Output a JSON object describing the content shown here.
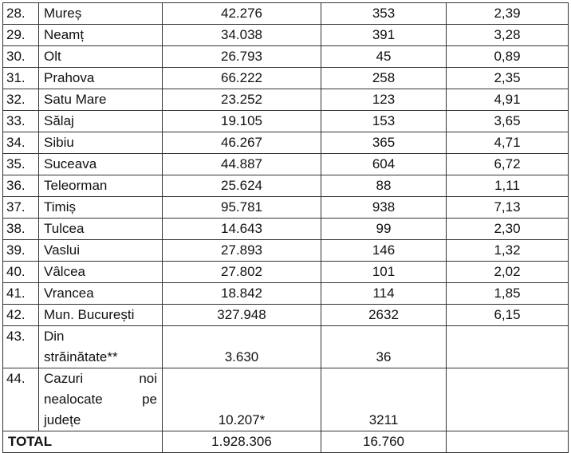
{
  "rows": [
    {
      "nr": "28.",
      "name": "Mureș",
      "cases": "42.276",
      "new": "353",
      "rate": "2,39"
    },
    {
      "nr": "29.",
      "name": "Neamț",
      "cases": "34.038",
      "new": "391",
      "rate": "3,28"
    },
    {
      "nr": "30.",
      "name": "Olt",
      "cases": "26.793",
      "new": "45",
      "rate": "0,89"
    },
    {
      "nr": "31.",
      "name": "Prahova",
      "cases": "66.222",
      "new": "258",
      "rate": "2,35"
    },
    {
      "nr": "32.",
      "name": "Satu Mare",
      "cases": "23.252",
      "new": "123",
      "rate": "4,91"
    },
    {
      "nr": "33.",
      "name": "Sălaj",
      "cases": "19.105",
      "new": "153",
      "rate": "3,65"
    },
    {
      "nr": "34.",
      "name": "Sibiu",
      "cases": "46.267",
      "new": "365",
      "rate": "4,71"
    },
    {
      "nr": "35.",
      "name": "Suceava",
      "cases": "44.887",
      "new": "604",
      "rate": "6,72"
    },
    {
      "nr": "36.",
      "name": "Teleorman",
      "cases": "25.624",
      "new": "88",
      "rate": "1,11"
    },
    {
      "nr": "37.",
      "name": "Timiș",
      "cases": "95.781",
      "new": "938",
      "rate": "7,13"
    },
    {
      "nr": "38.",
      "name": "Tulcea",
      "cases": "14.643",
      "new": "99",
      "rate": "2,30"
    },
    {
      "nr": "39.",
      "name": "Vaslui",
      "cases": "27.893",
      "new": "146",
      "rate": "1,32"
    },
    {
      "nr": "40.",
      "name": "Vâlcea",
      "cases": "27.802",
      "new": "101",
      "rate": "2,02"
    },
    {
      "nr": "41.",
      "name": "Vrancea",
      "cases": "18.842",
      "new": "114",
      "rate": "1,85"
    },
    {
      "nr": "42.",
      "name": "Mun. București",
      "cases": "327.948",
      "new": "2632",
      "rate": "6,15"
    }
  ],
  "abroad": {
    "nr": "43.",
    "name_line1": "Din",
    "name_line2": "străinătate**",
    "cases": "3.630",
    "new": "36",
    "rate": ""
  },
  "unallocated": {
    "nr": "44.",
    "w1": "Cazuri",
    "w2": "noi",
    "w3": "nealocate",
    "w4": "pe",
    "w5": "județe",
    "cases": "10.207*",
    "new": "3211",
    "rate": ""
  },
  "total": {
    "label": "TOTAL",
    "cases": "1.928.306",
    "new": "16.760",
    "rate": ""
  }
}
